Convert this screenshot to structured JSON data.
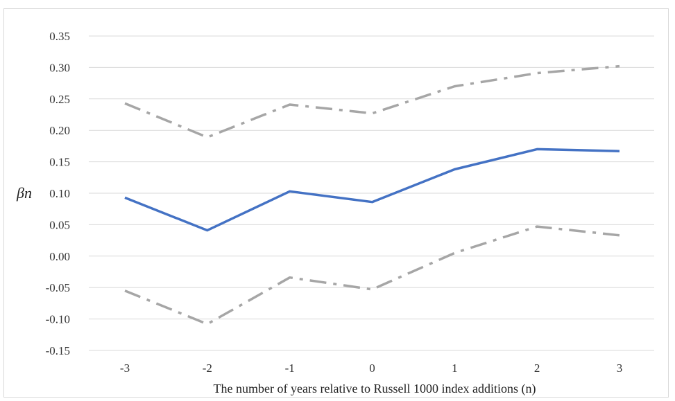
{
  "chart_data": {
    "type": "line",
    "title": "",
    "xlabel": "The number  of years relative to Russell 1000 index additions (n)",
    "ylabel": "βn",
    "categories": [
      "-3",
      "-2",
      "-1",
      "0",
      "1",
      "2",
      "3"
    ],
    "ylim": [
      -0.15,
      0.35
    ],
    "yticks": [
      "-0.15",
      "-0.10",
      "-0.05",
      "0.00",
      "0.05",
      "0.10",
      "0.15",
      "0.20",
      "0.25",
      "0.30",
      "0.35"
    ],
    "grid": true,
    "legend": "none",
    "series": [
      {
        "values": [
          0.093,
          0.041,
          0.103,
          0.086,
          0.138,
          0.17,
          0.167
        ],
        "color": "#4472c4",
        "style": "solid"
      },
      {
        "values": [
          0.243,
          0.189,
          0.241,
          0.227,
          0.27,
          0.291,
          0.302
        ],
        "color": "#a6a6a6",
        "style": "dash-dot"
      },
      {
        "values": [
          -0.055,
          -0.108,
          -0.034,
          -0.053,
          0.005,
          0.047,
          0.033
        ],
        "color": "#a6a6a6",
        "style": "dash-dot"
      }
    ]
  }
}
